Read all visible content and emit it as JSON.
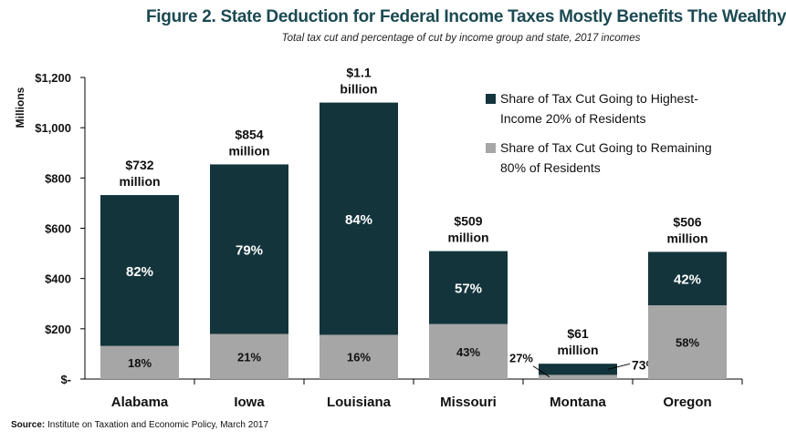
{
  "title": "Figure 2. State Deduction for Federal Income Taxes Mostly Benefits The Wealthy",
  "subtitle": "Total tax cut and percentage of cut by income group and state, 2017 incomes",
  "source_label": "Source:",
  "source_text": "Institute on Taxation and Economic Policy, March 2017",
  "colors": {
    "top": "#13343b",
    "bottom": "#a6a6a6",
    "title": "#1b4a52"
  },
  "chart_data": {
    "type": "bar",
    "stacked": true,
    "categories": [
      "Alabama",
      "Iowa",
      "Louisiana",
      "Missouri",
      "Montana",
      "Oregon"
    ],
    "totals": [
      732,
      854,
      1100,
      509,
      61,
      506
    ],
    "total_labels": [
      [
        "$732",
        "million"
      ],
      [
        "$854",
        "million"
      ],
      [
        "$1.1",
        "billion"
      ],
      [
        "$509",
        "million"
      ],
      [
        "$61",
        "million"
      ],
      [
        "$506",
        "million"
      ]
    ],
    "series": [
      {
        "name": "Share of Tax Cut Going to Highest-Income 20% of Residents",
        "legend_lines": [
          "Share of Tax Cut Going to Highest-",
          "Income 20% of Residents"
        ],
        "color": "#13343b",
        "percent_labels": [
          "82%",
          "79%",
          "84%",
          "57%",
          "73%",
          "42%"
        ]
      },
      {
        "name": "Share of Tax Cut Going to Remaining 80% of Residents",
        "legend_lines": [
          "Share of Tax Cut Going to Remaining",
          "80% of Residents"
        ],
        "color": "#a6a6a6",
        "percent_labels": [
          "18%",
          "21%",
          "16%",
          "43%",
          "27%",
          "58%"
        ]
      }
    ],
    "ylabel": "Millions",
    "ylim": [
      0,
      1200
    ],
    "yticks": [
      0,
      200,
      400,
      600,
      800,
      1000,
      1200
    ],
    "ytick_labels": [
      "$-",
      "$200",
      "$400",
      "$600",
      "$800",
      "$1,000",
      "$1,200"
    ],
    "legend_position": "top-right",
    "grid": false
  }
}
